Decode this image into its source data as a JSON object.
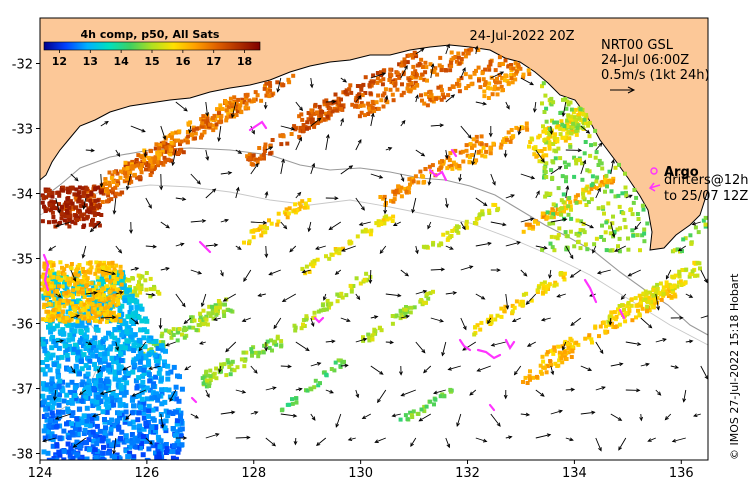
{
  "map": {
    "product_time": "24-Jul-2022 20Z",
    "colorbar": {
      "title": "4h comp, p50, All Sats",
      "ticks": [
        "12",
        "13",
        "14",
        "15",
        "16",
        "17",
        "18"
      ],
      "range": [
        11.5,
        18.5
      ],
      "colors": [
        "#00008b",
        "#0040ff",
        "#00b0ff",
        "#00e0c0",
        "#40d060",
        "#b0e020",
        "#ffe000",
        "#ffa000",
        "#e06000",
        "#b03000",
        "#800000"
      ]
    },
    "current_info": [
      "NRT00 GSL",
      "24-Jul 06:00Z",
      "0.5m/s (1kt 24h)"
    ],
    "argo_label": "Argo",
    "drifter_lines": [
      "drifters@12h",
      "to 25/07 12Z"
    ],
    "credit": "© IMOS 27-Jul-2022 15:18 Hobart",
    "lon_ticks": [
      "124",
      "126",
      "128",
      "130",
      "132",
      "134",
      "136"
    ],
    "lat_ticks": [
      "-32",
      "-33",
      "-34",
      "-35",
      "-36",
      "-37",
      "-38"
    ],
    "extent": {
      "lon": [
        124,
        136.5
      ],
      "lat": [
        -38.1,
        -31.3
      ]
    },
    "colors": {
      "land": "#fcc898",
      "drifter": "#ff33ff",
      "coast": "#000000",
      "depth_contour": "#999999"
    }
  }
}
